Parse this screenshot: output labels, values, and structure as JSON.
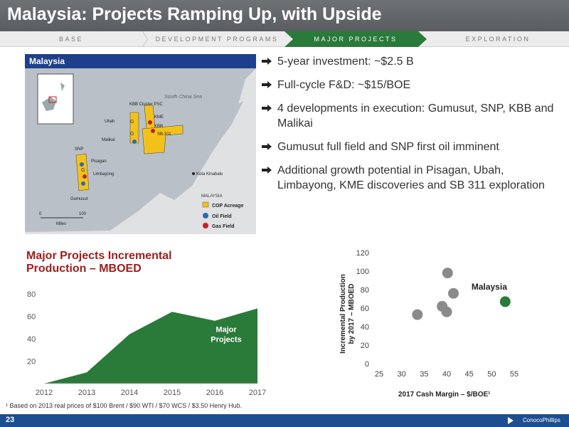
{
  "title": "Malaysia: Projects Ramping Up, with Upside",
  "tabs": [
    {
      "label": "BASE",
      "active": false
    },
    {
      "label": "DEVELOPMENT PROGRAMS",
      "active": false
    },
    {
      "label": "MAJOR PROJECTS",
      "active": true
    },
    {
      "label": "EXPLORATION",
      "active": false
    }
  ],
  "map": {
    "header": "Malaysia",
    "sea_label": "South China Sea",
    "labels": {
      "kbb_cluster": "KBB Cluster PSC",
      "ubah": "Ubah",
      "malikai": "Malikai",
      "kme": "KME",
      "kbb": "KBB",
      "sb311": "SB-311",
      "snp": "SNP",
      "pisagan": "Pisagan",
      "limbayong": "Limbayong",
      "gumusut": "Gumusut",
      "kota": "Kota Kinabalu",
      "g": "G"
    },
    "scale": {
      "zero": "0",
      "hundred": "100",
      "unit": "Miles"
    },
    "legend": {
      "title": "MALAYSIA",
      "items": [
        {
          "label": "COP Acreage",
          "color": "#f2c21b"
        },
        {
          "label": "Oil Field",
          "color": "#2a6ab3"
        },
        {
          "label": "Gas Field",
          "color": "#c0222a"
        }
      ]
    }
  },
  "bullets": [
    "5-year investment: ~$2.5 B",
    "Full-cycle F&D: ~$15/BOE",
    "4 developments in execution: Gumusut, SNP, KBB and Malikai",
    "Gumusut full field and SNP first oil imminent",
    "Additional growth potential in Pisagan, Ubah, Limbayong, KME discoveries and SB 311 exploration"
  ],
  "area_title_line1": "Major Projects Incremental",
  "area_title_line2": "Production – MBOED",
  "footnote": "¹ Based on 2013 real prices of $100 Brent / $90 WTI / $70 WCS / $3.50 Henry Hub.",
  "page_number": "23",
  "logo_text": "ConocoPhillips",
  "colors": {
    "green": "#2a7a3a",
    "navy": "#1d4e8f",
    "red": "#a01c1c",
    "gray": "#8a8a8a"
  },
  "chart_data": [
    {
      "type": "area",
      "title": "Major Projects Incremental Production – MBOED",
      "x": [
        "2012",
        "2013",
        "2014",
        "2015",
        "2016",
        "2017"
      ],
      "series": [
        {
          "name": "Major Projects",
          "values": [
            0,
            10,
            44,
            64,
            56,
            67
          ]
        }
      ],
      "yticks": [
        "20",
        "40",
        "60",
        "80"
      ],
      "ylim": [
        0,
        85
      ]
    },
    {
      "type": "scatter",
      "xlabel": "2017 Cash Margin – $/BOE¹",
      "ylabel": "Incremental Production by 2017 – MBOED",
      "xticks": [
        "25",
        "30",
        "35",
        "40",
        "45",
        "50",
        "55"
      ],
      "yticks": [
        "0",
        "20",
        "40",
        "60",
        "80",
        "100",
        "120"
      ],
      "xlim": [
        25,
        55
      ],
      "ylim": [
        0,
        120
      ],
      "points": [
        {
          "x": 33.5,
          "y": 53
        },
        {
          "x": 39,
          "y": 62
        },
        {
          "x": 40,
          "y": 56
        },
        {
          "x": 40.2,
          "y": 98
        },
        {
          "x": 41.5,
          "y": 76
        },
        {
          "x": 53,
          "y": 67,
          "label": "Malaysia",
          "highlight": true
        }
      ],
      "annotation": "Malaysia"
    }
  ]
}
